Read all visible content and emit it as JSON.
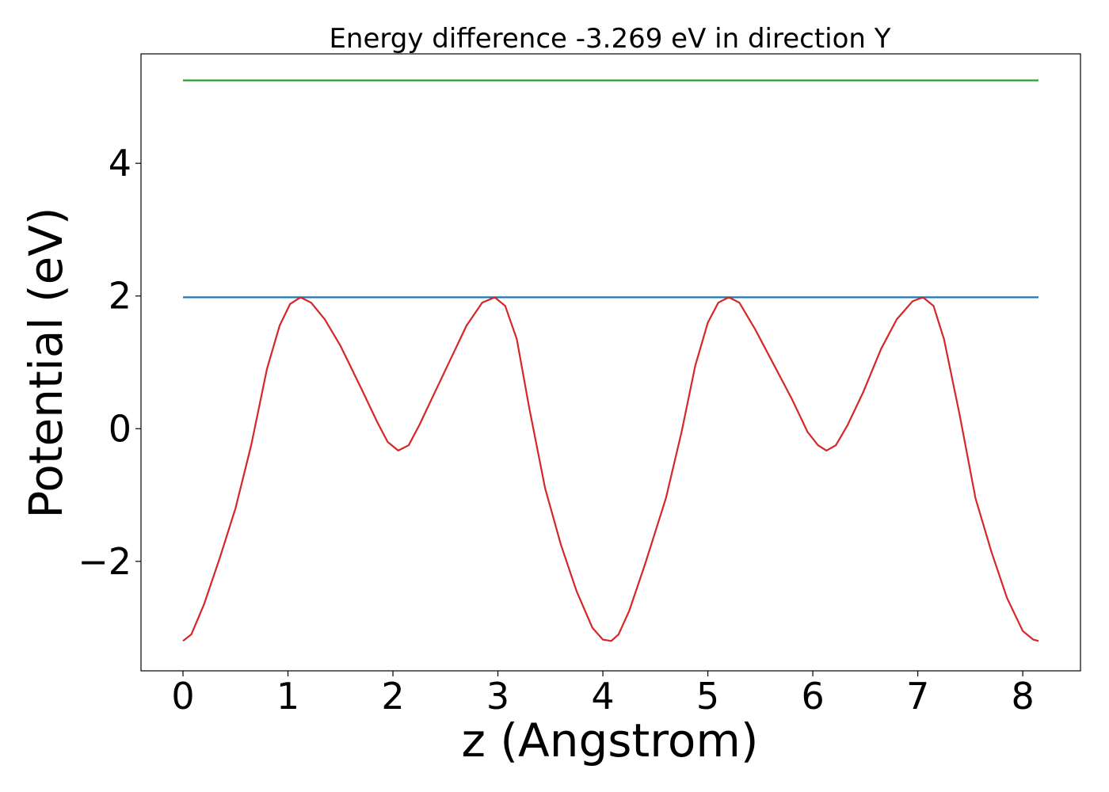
{
  "chart_data": {
    "type": "line",
    "title": "Energy difference -3.269 eV in direction Y",
    "xlabel": "z (Angstrom)",
    "ylabel": "Potential (eV)",
    "xlim": [
      -0.4,
      8.55
    ],
    "ylim": [
      -3.65,
      5.65
    ],
    "x_ticks": [
      0,
      1,
      2,
      3,
      4,
      5,
      6,
      7,
      8
    ],
    "x_tick_labels": [
      "0",
      "1",
      "2",
      "3",
      "4",
      "5",
      "6",
      "7",
      "8"
    ],
    "y_ticks": [
      -2,
      0,
      2,
      4
    ],
    "y_tick_labels": [
      "−2",
      "0",
      "2",
      "4"
    ],
    "grid": false,
    "legend": false,
    "series": [
      {
        "color": "#2ca02c",
        "x": [
          0,
          8.15
        ],
        "y": [
          5.25,
          5.25
        ]
      },
      {
        "color": "#1f77b4",
        "x": [
          0,
          8.15
        ],
        "y": [
          1.98,
          1.98
        ]
      },
      {
        "color": "#d62728",
        "x": [
          0.0,
          0.08,
          0.2,
          0.35,
          0.5,
          0.65,
          0.8,
          0.92,
          1.02,
          1.12,
          1.22,
          1.35,
          1.5,
          1.7,
          1.85,
          1.95,
          2.05,
          2.15,
          2.25,
          2.4,
          2.55,
          2.7,
          2.85,
          2.97,
          3.07,
          3.18,
          3.3,
          3.45,
          3.6,
          3.75,
          3.9,
          4.0,
          4.08,
          4.15,
          4.25,
          4.4,
          4.6,
          4.75,
          4.88,
          5.0,
          5.1,
          5.2,
          5.3,
          5.45,
          5.6,
          5.8,
          5.95,
          6.05,
          6.13,
          6.22,
          6.33,
          6.48,
          6.65,
          6.8,
          6.95,
          7.05,
          7.15,
          7.25,
          7.4,
          7.55,
          7.7,
          7.85,
          8.0,
          8.1,
          8.15
        ],
        "y": [
          -3.2,
          -3.1,
          -2.65,
          -1.95,
          -1.2,
          -0.25,
          0.9,
          1.55,
          1.88,
          1.98,
          1.9,
          1.65,
          1.25,
          0.6,
          0.1,
          -0.2,
          -0.33,
          -0.25,
          0.05,
          0.55,
          1.05,
          1.55,
          1.9,
          1.98,
          1.85,
          1.35,
          0.3,
          -0.9,
          -1.75,
          -2.45,
          -3.0,
          -3.18,
          -3.2,
          -3.1,
          -2.75,
          -2.05,
          -1.05,
          -0.05,
          0.95,
          1.6,
          1.9,
          1.98,
          1.9,
          1.5,
          1.05,
          0.45,
          -0.05,
          -0.25,
          -0.33,
          -0.25,
          0.05,
          0.55,
          1.2,
          1.65,
          1.92,
          1.98,
          1.85,
          1.35,
          0.2,
          -1.05,
          -1.85,
          -2.55,
          -3.05,
          -3.18,
          -3.2
        ]
      }
    ]
  }
}
